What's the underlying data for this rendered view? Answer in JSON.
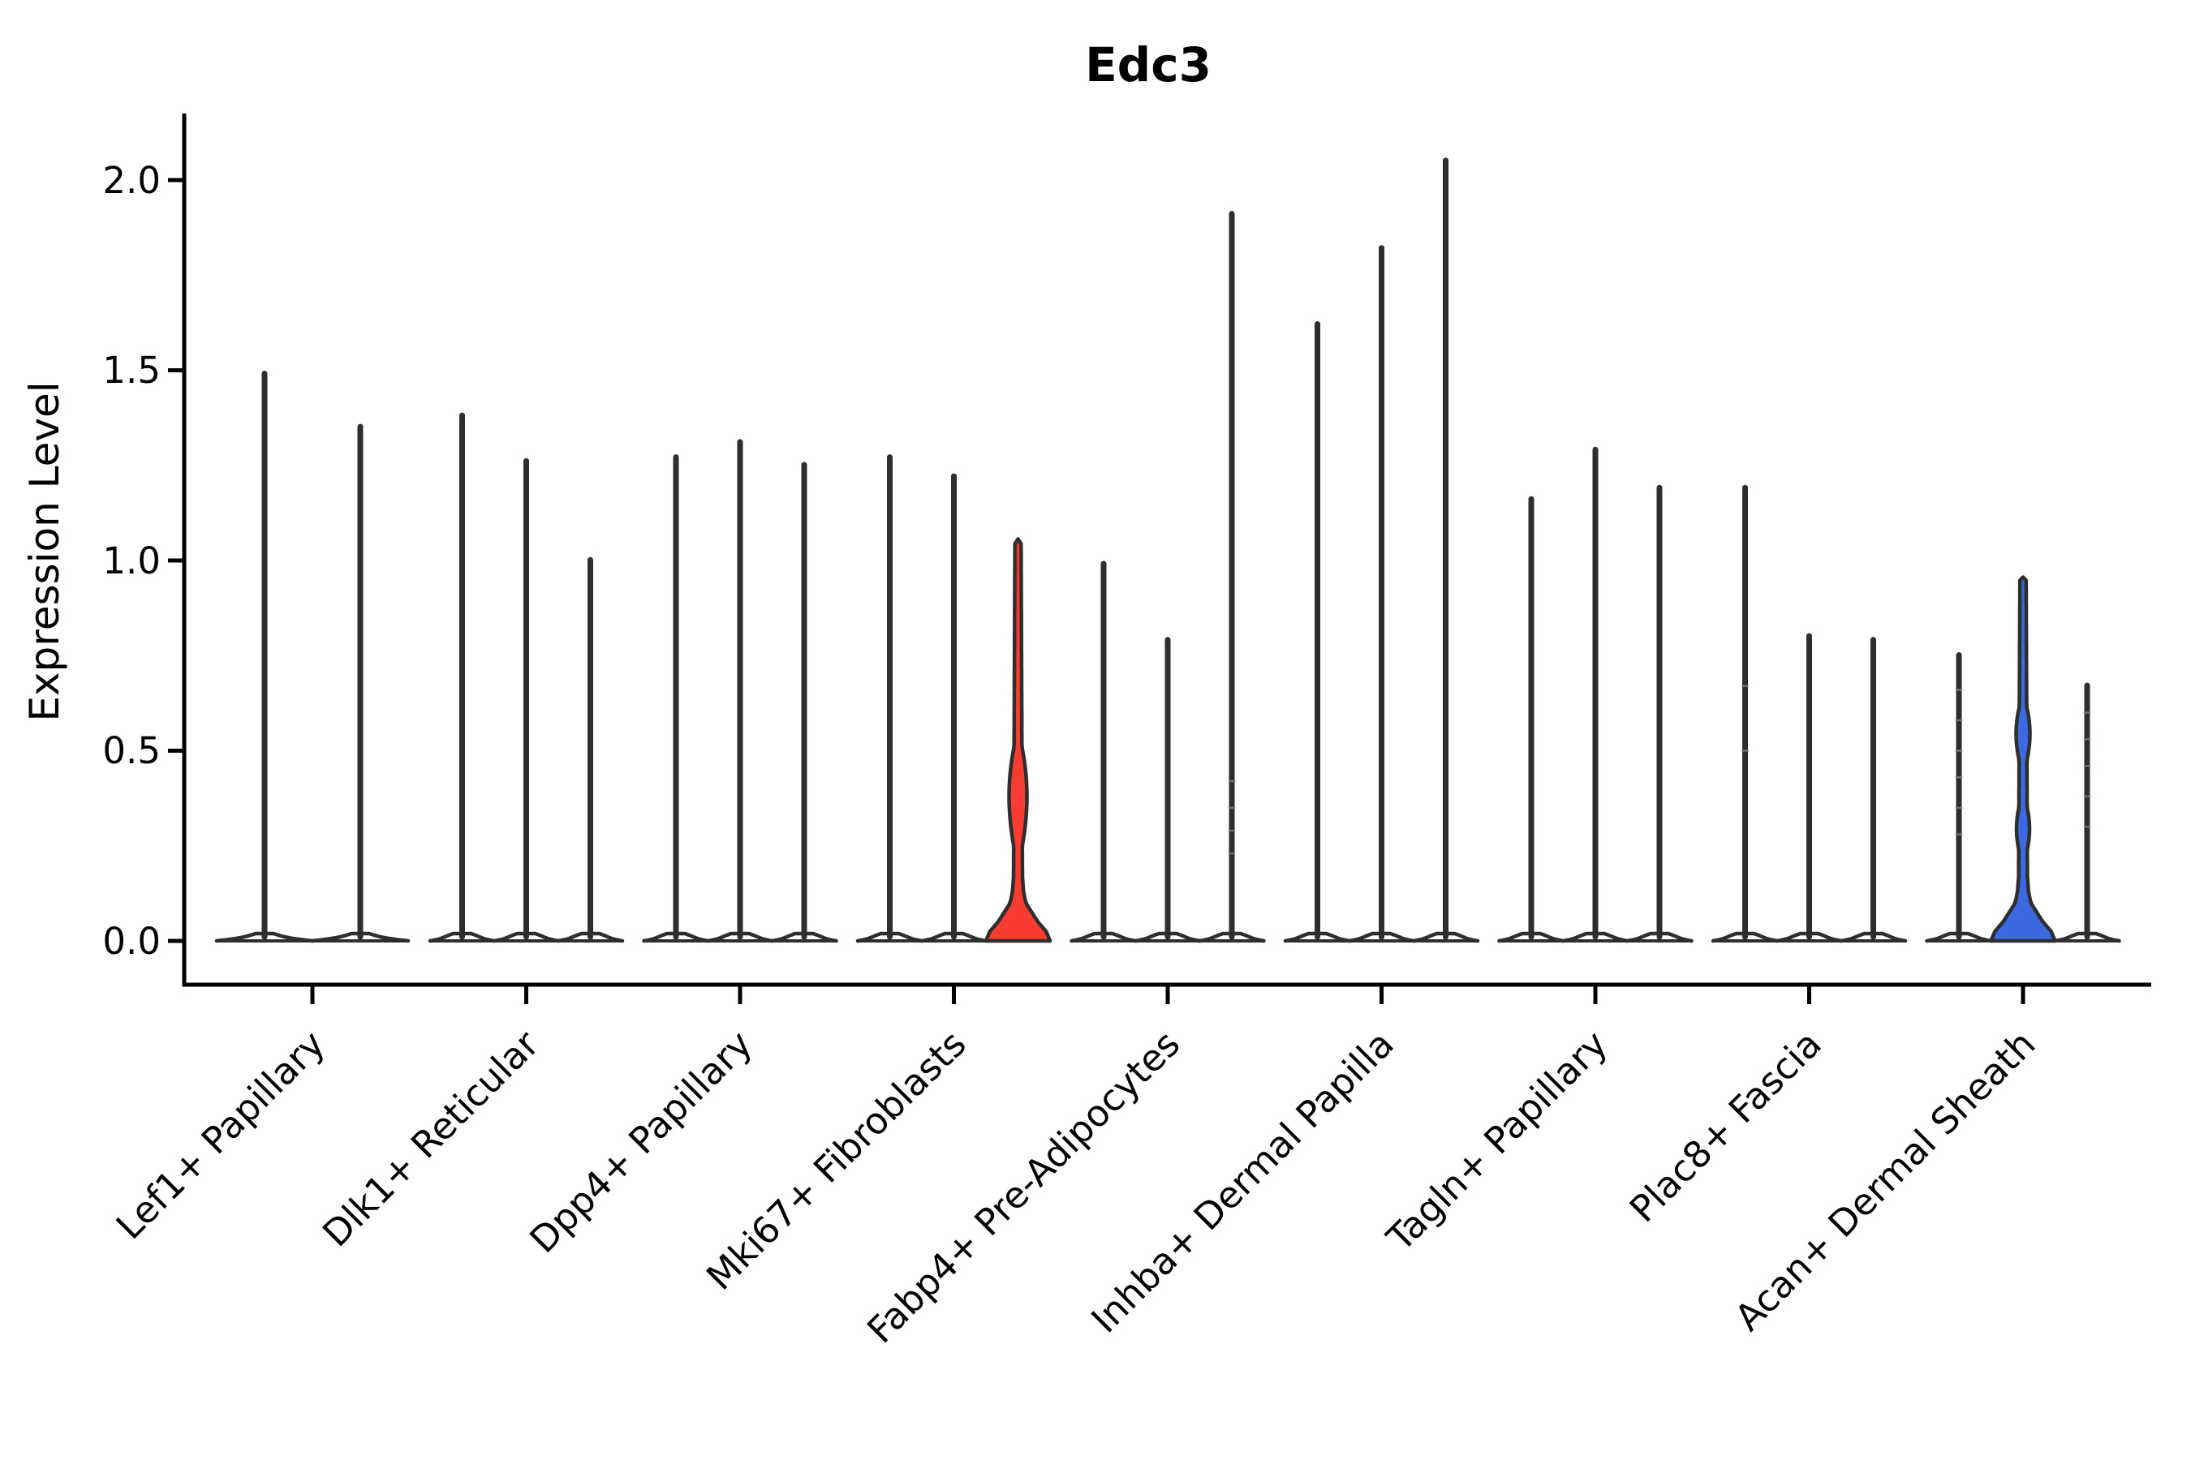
{
  "chart_data": {
    "type": "violin",
    "title": "Edc3",
    "ylabel": "Expression Level",
    "xlabel": "",
    "ytick_labels": [
      "2.0",
      "1.5",
      "1.0",
      "0.5",
      "0.0"
    ],
    "yticks": [
      2.0,
      1.5,
      1.0,
      0.5,
      0.0
    ],
    "ylim": [
      -0.11,
      2.18
    ],
    "grid": false,
    "legend_position": "none",
    "categories": [
      "Lef1+ Papillary",
      "Dlk1+ Reticular",
      "Dpp4+ Papillary",
      "Mki67+ Fibroblasts",
      "Fabp4+ Pre-Adipocytes",
      "Inhba+ Dermal Papilla",
      "Tagln+ Papillary",
      "Plac8+ Fascia",
      "Acan+ Dermal Sheath"
    ],
    "groups": [
      {
        "category": "Lef1+ Papillary",
        "violins": [
          {
            "max": 1.5,
            "fill": "none"
          },
          {
            "max": 1.36,
            "fill": "none"
          }
        ]
      },
      {
        "category": "Dlk1+ Reticular",
        "violins": [
          {
            "max": 1.39,
            "fill": "none"
          },
          {
            "max": 1.27,
            "fill": "none"
          },
          {
            "max": 1.01,
            "fill": "none"
          }
        ]
      },
      {
        "category": "Dpp4+ Papillary",
        "violins": [
          {
            "max": 1.28,
            "fill": "none"
          },
          {
            "max": 1.32,
            "fill": "none"
          },
          {
            "max": 1.26,
            "fill": "none"
          }
        ]
      },
      {
        "category": "Mki67+ Fibroblasts",
        "violins": [
          {
            "max": 1.28,
            "fill": "none"
          },
          {
            "max": 1.23,
            "fill": "none"
          },
          {
            "max": 1.05,
            "fill": "red",
            "bulges": [
              {
                "center": 0.38,
                "halfheight": 0.13,
                "halfwidth": 11
              }
            ]
          }
        ]
      },
      {
        "category": "Fabp4+ Pre-Adipocytes",
        "violins": [
          {
            "max": 1.0,
            "fill": "none"
          },
          {
            "max": 0.8,
            "fill": "none"
          },
          {
            "max": 1.92,
            "fill": "none",
            "points": [
              0.23,
              0.29,
              0.35,
              0.42
            ]
          }
        ]
      },
      {
        "category": "Inhba+ Dermal Papilla",
        "violins": [
          {
            "max": 1.63,
            "fill": "none"
          },
          {
            "max": 1.83,
            "fill": "none"
          },
          {
            "max": 2.06,
            "fill": "none"
          }
        ]
      },
      {
        "category": "Tagln+ Papillary",
        "violins": [
          {
            "max": 1.17,
            "fill": "none"
          },
          {
            "max": 1.3,
            "fill": "none"
          },
          {
            "max": 1.2,
            "fill": "none"
          }
        ]
      },
      {
        "category": "Plac8+ Fascia",
        "violins": [
          {
            "max": 1.2,
            "fill": "none",
            "points": [
              0.5,
              0.67
            ]
          },
          {
            "max": 0.81,
            "fill": "none"
          },
          {
            "max": 0.8,
            "fill": "none"
          }
        ]
      },
      {
        "category": "Acan+ Dermal Sheath",
        "violins": [
          {
            "max": 0.76,
            "fill": "none",
            "points": [
              0.28,
              0.35,
              0.43,
              0.5,
              0.58,
              0.66
            ]
          },
          {
            "max": 0.95,
            "fill": "blue",
            "bulges": [
              {
                "center": 0.295,
                "halfheight": 0.055,
                "halfwidth": 8.0
              },
              {
                "center": 0.545,
                "halfheight": 0.07,
                "halfwidth": 8.5
              }
            ]
          },
          {
            "max": 0.68,
            "fill": "none",
            "points": [
              0.3,
              0.38,
              0.46,
              0.53,
              0.6
            ]
          }
        ]
      }
    ],
    "colors": {
      "violin_outline": "#2e2e2e",
      "red_fill": "#f93b31",
      "blue_fill": "#3c69e1",
      "axis": "#000000",
      "jitter": "#8c8c8c"
    }
  }
}
